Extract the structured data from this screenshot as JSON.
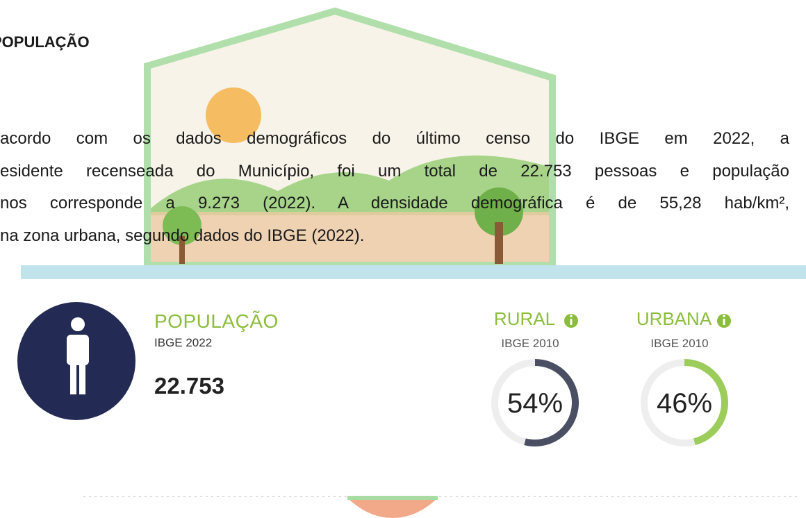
{
  "heading": "POPULAÇÃO",
  "paragraph": [
    "acordo com os dados demográficos do último censo do IBGE em 2022, a",
    "esidente recenseada do Município, foi um total de 22.753 pessoas e população",
    "nos corresponde a 9.273 (2022).  A densidade demográfica é de 55,28 hab/km²,",
    "na zona urbana, segundo dados do IBGE (2022)."
  ],
  "population": {
    "title": "POPULAÇÃO",
    "source": "IBGE 2022",
    "value": "22.753"
  },
  "stats": [
    {
      "title": "RURAL",
      "source": "IBGE 2010",
      "value": 54,
      "value_label": "54%",
      "color": "#4a4f63"
    },
    {
      "title": "URBANA",
      "source": "IBGE 2010",
      "value": 46,
      "value_label": "46%",
      "color": "#9ccc5a"
    }
  ]
}
